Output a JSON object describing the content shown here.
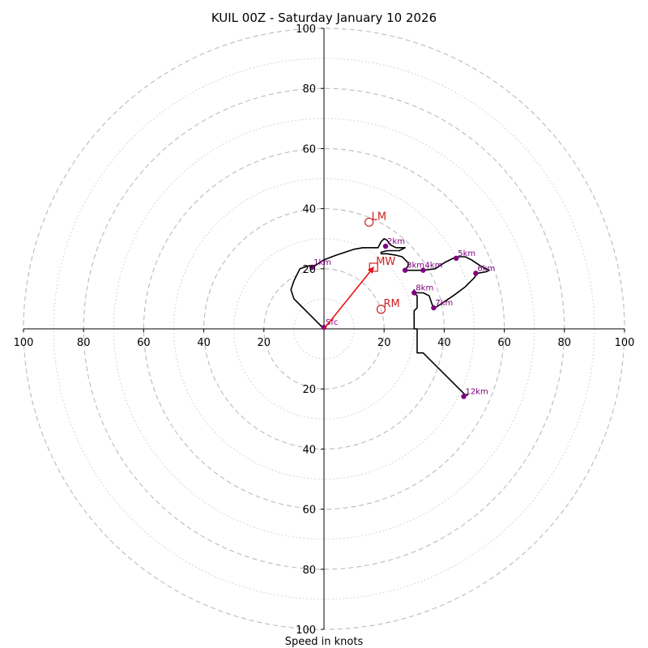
{
  "chart_data": {
    "type": "hodograph",
    "title": "KUIL 00Z - Saturday January 10 2026",
    "xlabel": "Speed in knots",
    "range": [
      -100,
      100
    ],
    "major_rings": [
      20,
      40,
      60,
      80,
      100
    ],
    "minor_rings": [
      10,
      30,
      50,
      70,
      90
    ],
    "h_ticks": [
      {
        "value": -100,
        "label": "100"
      },
      {
        "value": -80,
        "label": "80"
      },
      {
        "value": -60,
        "label": "60"
      },
      {
        "value": -40,
        "label": "40"
      },
      {
        "value": -20,
        "label": "20"
      },
      {
        "value": 20,
        "label": "20"
      },
      {
        "value": 40,
        "label": "40"
      },
      {
        "value": 60,
        "label": "60"
      },
      {
        "value": 80,
        "label": "80"
      },
      {
        "value": 100,
        "label": "100"
      }
    ],
    "v_ticks": [
      {
        "value": 100,
        "label": "100"
      },
      {
        "value": 80,
        "label": "80"
      },
      {
        "value": 60,
        "label": "60"
      },
      {
        "value": 40,
        "label": "40"
      },
      {
        "value": 20,
        "label": "20"
      },
      {
        "value": -20,
        "label": "20"
      },
      {
        "value": -40,
        "label": "40"
      },
      {
        "value": -60,
        "label": "60"
      },
      {
        "value": -80,
        "label": "80"
      },
      {
        "value": -100,
        "label": "100"
      }
    ],
    "trace": [
      [
        0,
        0
      ],
      [
        -3,
        3
      ],
      [
        -7,
        7
      ],
      [
        -10,
        10
      ],
      [
        -11,
        13
      ],
      [
        -10,
        16
      ],
      [
        -9,
        18
      ],
      [
        -8,
        20
      ],
      [
        -5,
        21
      ],
      [
        -3,
        21
      ],
      [
        0,
        23
      ],
      [
        4,
        24.5
      ],
      [
        7,
        25.5
      ],
      [
        10,
        26.5
      ],
      [
        13,
        27
      ],
      [
        16,
        27
      ],
      [
        18,
        27
      ],
      [
        19,
        29
      ],
      [
        20,
        30
      ],
      [
        21,
        29.5
      ],
      [
        22,
        28
      ],
      [
        24,
        27
      ],
      [
        26,
        27
      ],
      [
        27,
        27
      ],
      [
        25,
        26
      ],
      [
        23,
        26
      ],
      [
        21,
        26
      ],
      [
        19,
        25.5
      ],
      [
        19,
        25
      ],
      [
        21,
        25
      ],
      [
        24,
        24.5
      ],
      [
        26,
        24
      ],
      [
        27,
        23
      ],
      [
        28,
        22
      ],
      [
        28,
        21
      ],
      [
        27,
        19.5
      ],
      [
        30,
        19.5
      ],
      [
        33,
        19.5
      ],
      [
        37,
        20
      ],
      [
        40,
        22
      ],
      [
        44,
        24
      ],
      [
        47,
        24
      ],
      [
        49,
        23
      ],
      [
        52,
        21
      ],
      [
        55,
        19.5
      ],
      [
        54,
        19
      ],
      [
        51,
        18.5
      ],
      [
        50,
        17
      ],
      [
        47,
        14
      ],
      [
        43,
        11
      ],
      [
        40,
        9
      ],
      [
        37,
        7
      ],
      [
        36,
        8
      ],
      [
        35,
        11
      ],
      [
        33,
        12
      ],
      [
        31,
        12
      ],
      [
        30,
        12
      ],
      [
        30,
        13
      ],
      [
        30,
        12
      ],
      [
        31,
        11
      ],
      [
        31,
        9
      ],
      [
        31,
        7
      ],
      [
        30,
        6
      ],
      [
        30,
        0
      ],
      [
        31,
        0
      ],
      [
        31,
        -6
      ],
      [
        31,
        -8
      ],
      [
        33,
        -8
      ],
      [
        47,
        -22
      ],
      [
        48,
        -22
      ]
    ],
    "height_markers": [
      {
        "label": "Sfc",
        "u": 0,
        "v": 0.5
      },
      {
        "label": "1km",
        "u": -4,
        "v": 20.5
      },
      {
        "label": "2km",
        "u": 20.5,
        "v": 27.5
      },
      {
        "label": "3km",
        "u": 27,
        "v": 19.5
      },
      {
        "label": "4km",
        "u": 33,
        "v": 19.5
      },
      {
        "label": "5km",
        "u": 44,
        "v": 23.5
      },
      {
        "label": "6km",
        "u": 50.5,
        "v": 18.5
      },
      {
        "label": "7km",
        "u": 36.5,
        "v": 7
      },
      {
        "label": "8km",
        "u": 30,
        "v": 12
      },
      {
        "label": "12km",
        "u": 46.5,
        "v": -22.5
      }
    ],
    "storm_motion": [
      {
        "label": "LM",
        "u": 15,
        "v": 35.5,
        "marker": "circle"
      },
      {
        "label": "RM",
        "u": 19,
        "v": 6.5,
        "marker": "circle"
      },
      {
        "label": "MW",
        "u": 16.5,
        "v": 20.5,
        "marker": "square"
      }
    ],
    "shear_arrow": {
      "from": [
        0,
        0
      ],
      "to": [
        16.5,
        20.5
      ]
    },
    "colors": {
      "trace": "#000000",
      "marker": "#800080",
      "storm": "#cc2222",
      "arrow": "#ee1111",
      "major_ring": "#bbbbbb",
      "minor_ring": "#cccccc"
    }
  }
}
